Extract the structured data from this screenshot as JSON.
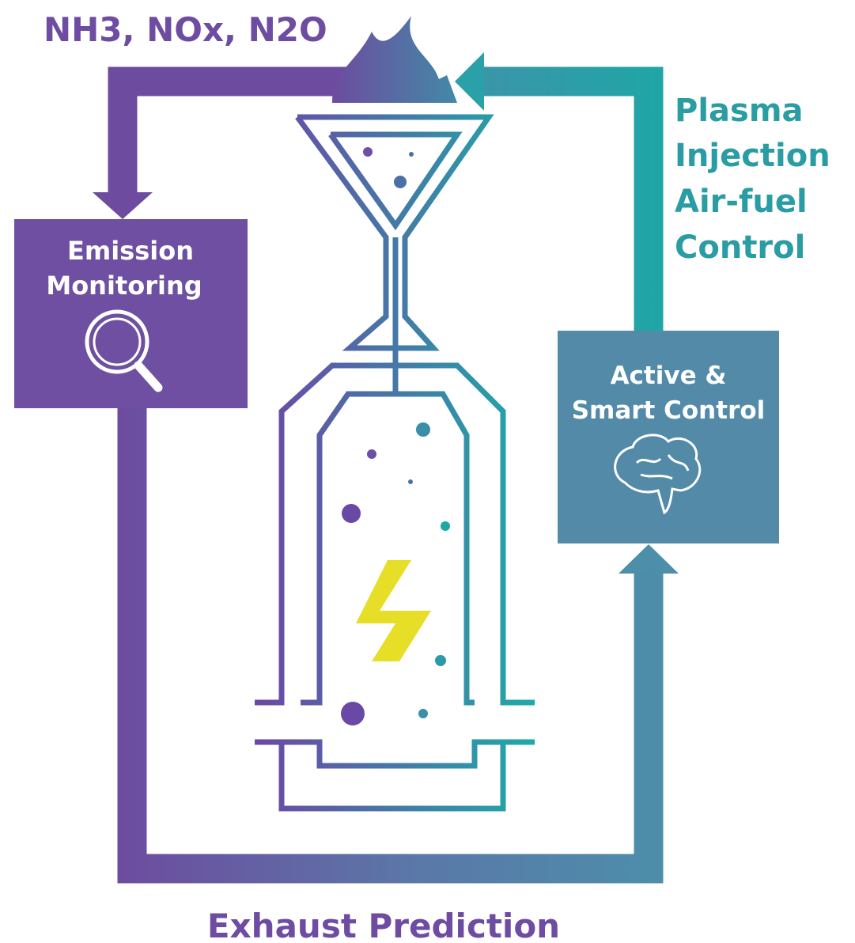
{
  "labels": {
    "emissions": "NH3, NOx, N2O",
    "exhaust_prediction": "Exhaust Prediction"
  },
  "nodes": [
    {
      "label_lines": [
        "Emission",
        "Monitoring"
      ]
    },
    {
      "label_lines": [
        "Active &",
        "Smart Control"
      ]
    }
  ],
  "control": {
    "lines": [
      "Plasma",
      "Injection",
      "Air-fuel",
      "Control"
    ]
  }
}
